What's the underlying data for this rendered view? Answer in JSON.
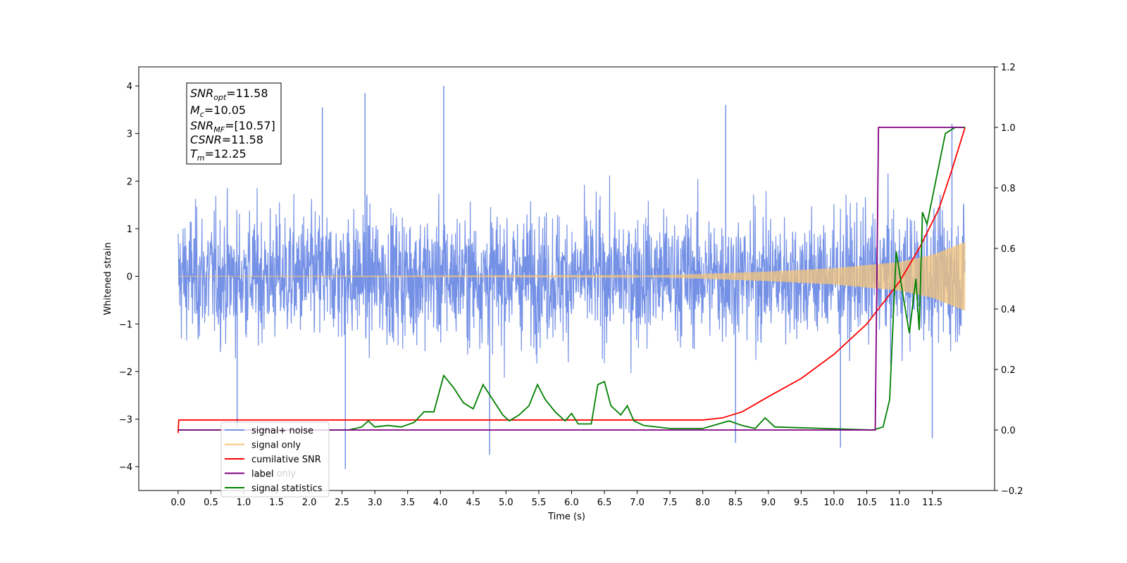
{
  "chart_data": {
    "type": "line",
    "xlabel": "Time (s)",
    "ylabel": "Whitened strain",
    "xlim": [
      -0.6,
      12.45
    ],
    "ylim_left": [
      -4.5,
      4.4
    ],
    "ylim_right": [
      -0.2,
      1.2
    ],
    "x_ticks": [
      "0.0",
      "0.5",
      "1.0",
      "1.5",
      "2.0",
      "2.5",
      "3.0",
      "3.5",
      "4.0",
      "4.5",
      "5.0",
      "5.5",
      "6.0",
      "6.5",
      "7.0",
      "7.5",
      "8.0",
      "8.5",
      "9.0",
      "9.5",
      "10.0",
      "10.5",
      "11.0",
      "11.5"
    ],
    "y_ticks_left": [
      "−4",
      "−3",
      "−2",
      "−1",
      "0",
      "1",
      "2",
      "3",
      "4"
    ],
    "y_ticks_right": [
      "−0.2",
      "0.0",
      "0.2",
      "0.4",
      "0.6",
      "0.8",
      "1.0",
      "1.2"
    ],
    "annotation": [
      {
        "base": "SNR",
        "sub": "opt",
        "value": "=11.58"
      },
      {
        "base": "M",
        "sub": "c",
        "value": "=10.05"
      },
      {
        "base": "SNR",
        "sub": "MF",
        "value": "=[10.57]"
      },
      {
        "base": "CSNR",
        "sub": "",
        "value": "=11.58"
      },
      {
        "base": "T",
        "sub": "m",
        "value": "=12.25"
      }
    ],
    "legend_placement": "lower-left",
    "legend": [
      {
        "label": "signal+ noise",
        "color": "#7591e6"
      },
      {
        "label": "signal only",
        "color": "#f5c67a"
      },
      {
        "label": "cumilative SNR",
        "color": "#ff0000"
      },
      {
        "label": "label",
        "color": "#800080"
      },
      {
        "label": "signal statistics",
        "color": "#008000"
      }
    ],
    "faint_overlap_text": "label only",
    "series": [
      {
        "name": "signal+ noise",
        "axis": "left",
        "color": "#7591e6",
        "x_range": [
          0.0,
          12.0
        ],
        "envelope": {
          "typical_amplitude": 2.3,
          "peaks": [
            {
              "x": 0.9,
              "y": -3.2
            },
            {
              "x": 2.2,
              "y": 3.55
            },
            {
              "x": 2.55,
              "y": -4.05
            },
            {
              "x": 2.85,
              "y": 3.85
            },
            {
              "x": 4.05,
              "y": 4.0
            },
            {
              "x": 4.75,
              "y": -3.75
            },
            {
              "x": 8.35,
              "y": 3.6
            },
            {
              "x": 8.5,
              "y": -3.5
            },
            {
              "x": 10.1,
              "y": -3.6
            },
            {
              "x": 11.5,
              "y": -3.4
            },
            {
              "x": 11.8,
              "y": 3.2
            }
          ]
        }
      },
      {
        "name": "signal only",
        "axis": "left",
        "color": "#f5c67a",
        "x_range": [
          0.0,
          12.0
        ],
        "amplitude_points": [
          [
            0.0,
            0.0
          ],
          [
            7.0,
            0.01
          ],
          [
            8.0,
            0.05
          ],
          [
            9.0,
            0.1
          ],
          [
            10.0,
            0.17
          ],
          [
            11.0,
            0.3
          ],
          [
            11.5,
            0.45
          ],
          [
            12.0,
            0.72
          ]
        ]
      },
      {
        "name": "cumilative SNR",
        "axis": "right",
        "color": "#ff0000",
        "points": [
          [
            0.0,
            -0.01
          ],
          [
            0.01,
            0.033
          ],
          [
            8.0,
            0.033
          ],
          [
            8.3,
            0.04
          ],
          [
            8.6,
            0.06
          ],
          [
            9.0,
            0.11
          ],
          [
            9.5,
            0.17
          ],
          [
            10.0,
            0.25
          ],
          [
            10.5,
            0.35
          ],
          [
            11.0,
            0.49
          ],
          [
            11.3,
            0.6
          ],
          [
            11.6,
            0.73
          ],
          [
            11.8,
            0.86
          ],
          [
            12.0,
            1.0
          ]
        ]
      },
      {
        "name": "label",
        "axis": "right",
        "color": "#800080",
        "points": [
          [
            0.0,
            0.0
          ],
          [
            10.63,
            0.0
          ],
          [
            10.68,
            1.0
          ],
          [
            11.98,
            1.0
          ]
        ]
      },
      {
        "name": "signal statistics",
        "axis": "right",
        "color": "#008000",
        "points": [
          [
            0.0,
            0.0
          ],
          [
            2.6,
            0.0
          ],
          [
            2.8,
            0.01
          ],
          [
            2.9,
            0.03
          ],
          [
            3.0,
            0.01
          ],
          [
            3.2,
            0.015
          ],
          [
            3.4,
            0.01
          ],
          [
            3.6,
            0.025
          ],
          [
            3.75,
            0.06
          ],
          [
            3.9,
            0.06
          ],
          [
            4.05,
            0.18
          ],
          [
            4.2,
            0.14
          ],
          [
            4.35,
            0.09
          ],
          [
            4.5,
            0.07
          ],
          [
            4.65,
            0.15
          ],
          [
            4.8,
            0.1
          ],
          [
            4.95,
            0.05
          ],
          [
            5.05,
            0.03
          ],
          [
            5.2,
            0.05
          ],
          [
            5.35,
            0.08
          ],
          [
            5.48,
            0.15
          ],
          [
            5.6,
            0.1
          ],
          [
            5.75,
            0.06
          ],
          [
            5.9,
            0.03
          ],
          [
            6.0,
            0.055
          ],
          [
            6.1,
            0.02
          ],
          [
            6.3,
            0.02
          ],
          [
            6.4,
            0.15
          ],
          [
            6.5,
            0.16
          ],
          [
            6.6,
            0.08
          ],
          [
            6.75,
            0.05
          ],
          [
            6.85,
            0.08
          ],
          [
            6.95,
            0.03
          ],
          [
            7.1,
            0.015
          ],
          [
            7.5,
            0.005
          ],
          [
            8.0,
            0.005
          ],
          [
            8.4,
            0.03
          ],
          [
            8.6,
            0.015
          ],
          [
            8.8,
            0.005
          ],
          [
            8.95,
            0.04
          ],
          [
            9.1,
            0.01
          ],
          [
            10.6,
            0.0
          ],
          [
            10.75,
            0.01
          ],
          [
            10.85,
            0.1
          ],
          [
            10.95,
            0.59
          ],
          [
            11.05,
            0.45
          ],
          [
            11.15,
            0.32
          ],
          [
            11.25,
            0.5
          ],
          [
            11.3,
            0.33
          ],
          [
            11.35,
            0.72
          ],
          [
            11.42,
            0.68
          ],
          [
            11.55,
            0.82
          ],
          [
            11.7,
            0.98
          ],
          [
            11.85,
            1.0
          ],
          [
            12.0,
            1.0
          ]
        ]
      }
    ]
  }
}
